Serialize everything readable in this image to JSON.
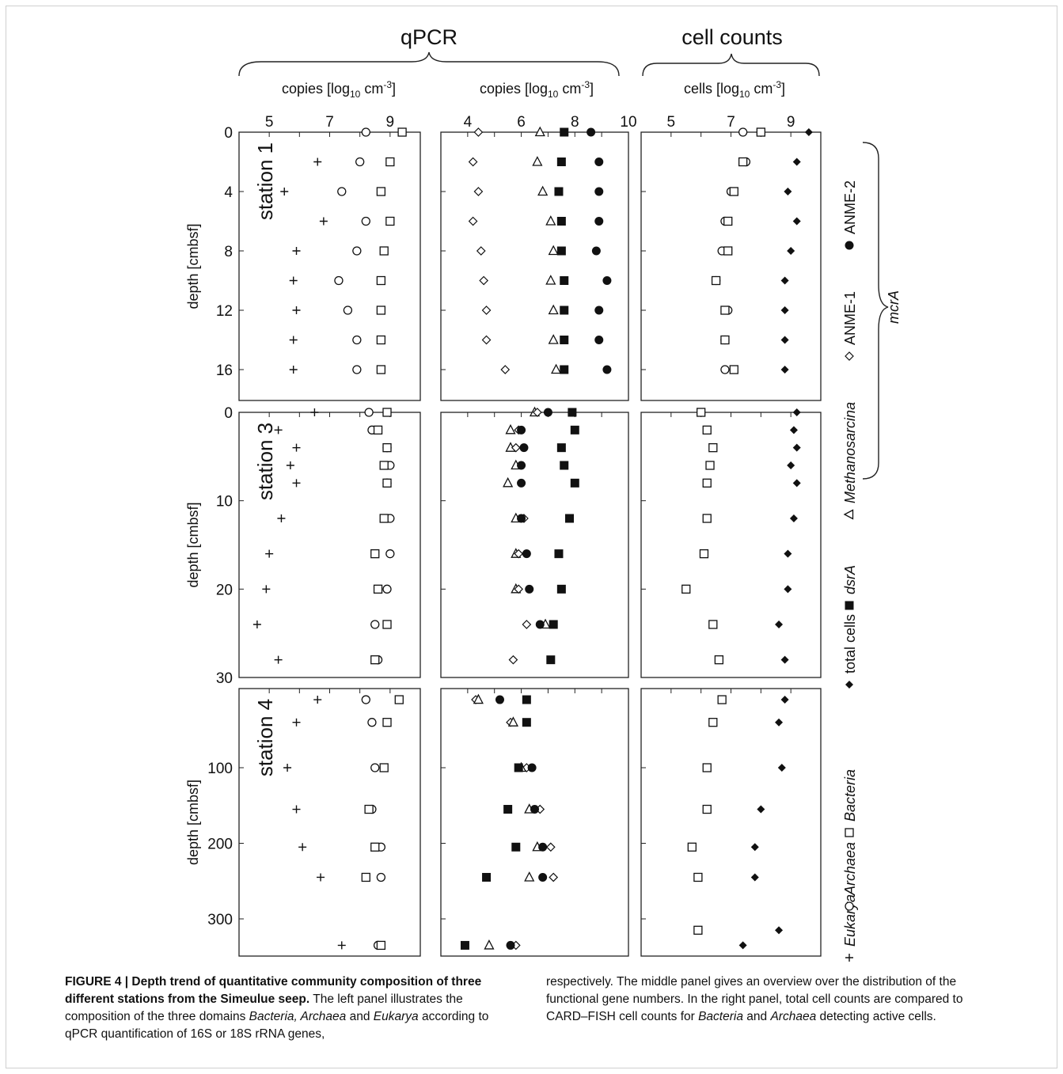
{
  "figure": {
    "group_titles": {
      "qpcr": "qPCR",
      "cells": "cell counts"
    },
    "subtitles": {
      "left": "copies [log<sub>10</sub> cm<sup>-3</sup>]",
      "mid": "copies [log<sub>10</sub> cm<sup>-3</sup>]",
      "right": "cells [log<sub>10</sub> cm<sup>-3</sup>]"
    },
    "y_axis_label": "depth [cmbsf]",
    "stations": [
      "station 1",
      "station 3",
      "station 4"
    ],
    "legend": {
      "items": [
        {
          "symbol": "plus",
          "label": "Eukarya",
          "italic": true
        },
        {
          "symbol": "circle-open",
          "label": "Archaea",
          "italic": true
        },
        {
          "symbol": "square-open",
          "label": "Bacteria",
          "italic": true
        },
        {
          "symbol": "diamond-filled",
          "label": "total cells",
          "italic": false
        },
        {
          "symbol": "square-filled",
          "label": "dsrA",
          "italic": true
        },
        {
          "symbol": "triangle-open",
          "label": "Methanosarcina",
          "italic": true
        },
        {
          "symbol": "diamond-open",
          "label": "ANME-1",
          "italic": false
        },
        {
          "symbol": "circle-filled",
          "label": "ANME-2",
          "italic": false
        }
      ],
      "mcrA_label": "mcrA"
    },
    "caption": {
      "title": "FIGURE 4 | Depth trend of quantitative community composition of three different stations from the Simeulue seep.",
      "text_col1": "The left panel illustrates the composition of the three domains <i>Bacteria, Archaea</i> and <i>Eukarya</i> according to qPCR quantification of 16S or 18S rRNA genes,",
      "text_col2": "respectively. The middle panel gives an overview over the distribution of the functional gene numbers. In the right panel, total cell counts are compared to CARD–FISH cell counts for <i>Bacteria</i> and <i>Archaea</i> detecting active cells."
    }
  },
  "chart_data": {
    "type": "scatter",
    "title": "",
    "xlabel_left": "copies [log10 cm-3]",
    "xlabel_mid": "copies [log10 cm-3]",
    "xlabel_right": "cells [log10 cm-3]",
    "ylabel": "depth [cmbsf]",
    "x_axes": {
      "left": {
        "range": [
          4,
          10
        ],
        "ticks": [
          5,
          7,
          9
        ]
      },
      "mid": {
        "range": [
          3,
          10
        ],
        "ticks": [
          4,
          6,
          8,
          10
        ]
      },
      "right": {
        "range": [
          4,
          10
        ],
        "ticks": [
          5,
          7,
          9
        ]
      }
    },
    "y_axes": {
      "station1": {
        "range": [
          0,
          17
        ],
        "ticks": [
          0,
          4,
          8,
          12,
          16
        ]
      },
      "station3": {
        "range": [
          0,
          30
        ],
        "ticks": [
          0,
          10,
          20,
          30
        ]
      },
      "station4": {
        "range": [
          0,
          345
        ],
        "ticks": [
          100,
          200,
          300
        ]
      }
    },
    "stations": [
      {
        "name": "station 1",
        "depths": [
          0,
          2,
          4,
          6,
          8,
          10,
          12,
          14,
          16
        ],
        "left": {
          "Eukarya": [
            null,
            6.6,
            5.5,
            6.8,
            5.9,
            5.8,
            5.9,
            5.8,
            5.8
          ],
          "Archaea": [
            8.2,
            8.0,
            7.4,
            8.2,
            7.9,
            7.3,
            7.6,
            7.9,
            7.9
          ],
          "Bacteria": [
            9.4,
            9.0,
            8.7,
            9.0,
            8.8,
            8.7,
            8.7,
            8.7,
            8.7
          ]
        },
        "mid": {
          "ANME-1": [
            4.4,
            4.2,
            4.4,
            4.2,
            4.5,
            4.6,
            4.7,
            4.7,
            5.4
          ],
          "Methanosarcina": [
            6.7,
            6.6,
            6.8,
            7.1,
            7.2,
            7.1,
            7.2,
            7.2,
            7.3
          ],
          "dsrA": [
            7.6,
            7.5,
            7.4,
            7.5,
            7.5,
            7.6,
            7.6,
            7.6,
            7.6
          ],
          "ANME-2": [
            8.6,
            8.9,
            8.9,
            8.9,
            8.8,
            9.2,
            8.9,
            8.9,
            9.2
          ]
        },
        "right": {
          "Archaea": [
            7.4,
            7.5,
            7.0,
            6.8,
            6.7,
            6.5,
            6.9,
            6.8,
            6.8
          ],
          "Bacteria": [
            8.0,
            7.4,
            7.1,
            6.9,
            6.9,
            6.5,
            6.8,
            6.8,
            7.1
          ],
          "total cells": [
            9.6,
            9.2,
            8.9,
            9.2,
            9.0,
            8.8,
            8.8,
            8.8,
            8.8
          ]
        }
      },
      {
        "name": "station 3",
        "depths": [
          0,
          2,
          4,
          6,
          8,
          12,
          16,
          20,
          24,
          28
        ],
        "left": {
          "Eukarya": [
            6.5,
            5.3,
            5.9,
            5.7,
            5.9,
            5.4,
            5.0,
            4.9,
            4.6,
            5.3
          ],
          "Archaea": [
            8.3,
            8.4,
            8.9,
            9.0,
            8.9,
            9.0,
            9.0,
            8.9,
            8.5,
            8.6
          ],
          "Bacteria": [
            8.9,
            8.6,
            8.9,
            8.8,
            8.9,
            8.8,
            8.5,
            8.6,
            8.9,
            8.5
          ]
        },
        "mid": {
          "Methanosarcina": [
            6.5,
            5.6,
            5.6,
            5.8,
            5.5,
            5.8,
            5.8,
            5.8,
            6.9,
            null
          ],
          "ANME-1": [
            6.6,
            5.9,
            5.8,
            null,
            null,
            6.1,
            5.9,
            5.9,
            6.2,
            5.7
          ],
          "ANME-2": [
            7.0,
            6.0,
            6.1,
            6.0,
            6.0,
            6.0,
            6.2,
            6.3,
            6.7,
            null
          ],
          "dsrA": [
            7.9,
            8.0,
            7.5,
            7.6,
            8.0,
            7.8,
            7.4,
            7.5,
            7.2,
            7.1
          ]
        },
        "right": {
          "Bacteria": [
            6.0,
            6.2,
            6.4,
            6.3,
            6.2,
            6.2,
            6.1,
            5.5,
            6.4,
            6.6
          ],
          "total cells": [
            9.2,
            9.1,
            9.2,
            9.0,
            9.2,
            9.1,
            8.9,
            8.9,
            8.6,
            8.8
          ]
        }
      },
      {
        "name": "station 4",
        "depths": [
          10,
          40,
          100,
          155,
          205,
          245,
          315,
          335
        ],
        "left": {
          "Eukarya": [
            6.6,
            5.9,
            5.6,
            5.9,
            6.1,
            6.7,
            null,
            7.4
          ],
          "Archaea": [
            8.2,
            8.4,
            8.5,
            8.4,
            8.7,
            8.7,
            null,
            8.6
          ],
          "Bacteria": [
            9.3,
            8.9,
            8.8,
            8.3,
            8.5,
            8.2,
            null,
            8.7
          ]
        },
        "mid": {
          "ANME-1": [
            4.3,
            5.6,
            6.2,
            6.7,
            7.1,
            7.2,
            null,
            5.8
          ],
          "Methanosarcina": [
            4.4,
            5.7,
            6.0,
            6.3,
            6.6,
            6.3,
            null,
            4.8
          ],
          "ANME-2": [
            5.2,
            null,
            6.4,
            6.5,
            6.8,
            6.8,
            null,
            5.6
          ],
          "dsrA": [
            6.2,
            6.2,
            5.9,
            5.5,
            5.8,
            4.7,
            null,
            3.9
          ]
        },
        "right": {
          "Bacteria": [
            6.7,
            6.4,
            6.2,
            6.2,
            5.7,
            5.9,
            5.9,
            null
          ],
          "total cells": [
            8.8,
            8.6,
            8.7,
            8.0,
            7.8,
            7.8,
            8.6,
            7.4
          ]
        }
      }
    ]
  }
}
